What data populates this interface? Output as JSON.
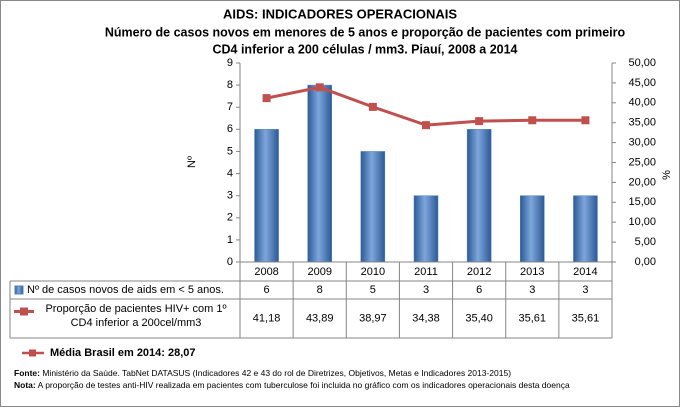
{
  "chart_data": {
    "type": "bar_line",
    "title": "AIDS: INDICADORES OPERACIONAIS",
    "subtitle_lines": [
      "Número de casos novos em menores de 5 anos e proporção de pacientes com primeiro",
      "CD4 inferior a 200 células / mm3. Piauí, 2008 a 2014"
    ],
    "categories": [
      "2008",
      "2009",
      "2010",
      "2011",
      "2012",
      "2013",
      "2014"
    ],
    "ylabel": "Nº",
    "y2label": "%",
    "ylim": [
      0,
      9
    ],
    "yticks": [
      0,
      1,
      2,
      3,
      4,
      5,
      6,
      7,
      8,
      9
    ],
    "y2lim": [
      0,
      50
    ],
    "y2ticks": [
      {
        "value": 0,
        "label": "0,00"
      },
      {
        "value": 5,
        "label": "5,00"
      },
      {
        "value": 10,
        "label": "10,00"
      },
      {
        "value": 15,
        "label": "15,00"
      },
      {
        "value": 20,
        "label": "20,00"
      },
      {
        "value": 25,
        "label": "25,00"
      },
      {
        "value": 30,
        "label": "30,00"
      },
      {
        "value": 35,
        "label": "35,00"
      },
      {
        "value": 40,
        "label": "40,00"
      },
      {
        "value": 45,
        "label": "45,00"
      },
      {
        "value": 50,
        "label": "50,00"
      }
    ],
    "series": [
      {
        "name": "Nº de casos novos de aids em < 5 anos.",
        "type": "bar",
        "color": "#4f81bd",
        "values": [
          6,
          8,
          5,
          3,
          6,
          3,
          3
        ]
      },
      {
        "name": "Proporção de pacientes HIV+ com 1º CD4 inferior a 200cel/mm3",
        "type": "line",
        "axis": "y2",
        "color": "#c0504d",
        "values": [
          41.18,
          43.89,
          38.97,
          34.38,
          35.4,
          35.61,
          35.61
        ],
        "value_labels": [
          "41,18",
          "43,89",
          "38,97",
          "34,38",
          "35,40",
          "35,61",
          "35,61"
        ]
      }
    ],
    "annotation": "Média Brasil em 2014: 28,07",
    "source_label": "Fonte:",
    "source": "Ministério da Saúde. TabNet DATASUS (Indicadores 42 e 43 do rol de Diretrizes, Objetivos, Metas e Indicadores 2013-2015)",
    "note_label": "Nota:",
    "note": "A proporção de testes anti-HIV realizada em pacientes com tuberculose foi incluida no gráfico com os indicadores operacionais desta doença"
  }
}
